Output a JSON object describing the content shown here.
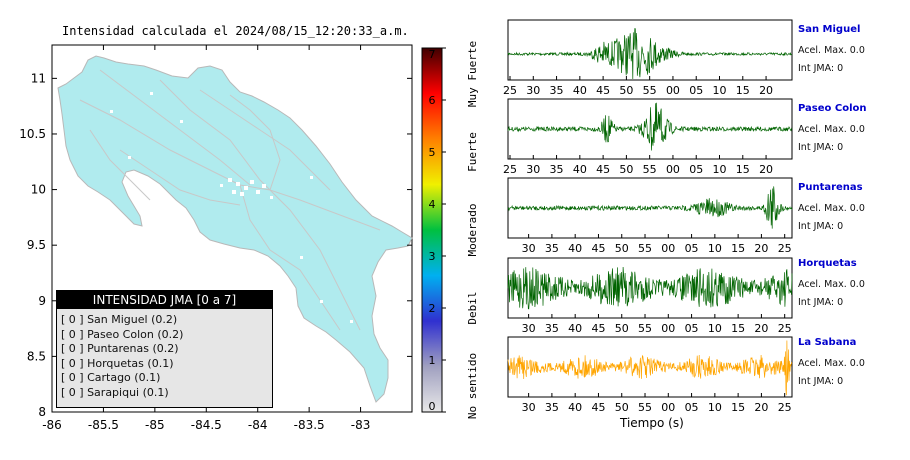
{
  "chart_data": [
    {
      "type": "map",
      "title": "Intensidad calculada el 2024/08/15_12:20:33_a.m.",
      "x_ticks": [
        "-86",
        "-85.5",
        "-85",
        "-84.5",
        "-84",
        "-83.5",
        "-83"
      ],
      "y_ticks": [
        "11",
        "10.5",
        "10",
        "9.5",
        "9",
        "8.5",
        "8"
      ],
      "xlim": [
        -86,
        -82.5
      ],
      "ylim": [
        8,
        11.3
      ],
      "legend": {
        "header": "INTENSIDAD JMA [0 a 7]",
        "entries": [
          "[ 0 ] San Miguel (0.2)",
          "[ 0 ] Paseo Colon (0.2)",
          "[ 0 ] Puntarenas (0.2)",
          "[ 0 ] Horquetas (0.1)",
          "[ 0 ] Cartago (0.1)",
          "[ 0 ] Sarapiqui (0.1)"
        ]
      }
    },
    {
      "type": "colorbar",
      "range": [
        0,
        7
      ],
      "ticks": [
        "0",
        "1",
        "2",
        "3",
        "4",
        "5",
        "6",
        "7"
      ],
      "category_labels": [
        "No sentido",
        "Debil",
        "Moderado",
        "Fuerte",
        "Muy Fuerte"
      ],
      "colors": [
        "#e8e8e8",
        "#a0a0c0",
        "#3030d0",
        "#00b0f0",
        "#00c040",
        "#f0f000",
        "#ff8000",
        "#ff0000",
        "#400000"
      ]
    },
    {
      "type": "waveforms",
      "xlabel": "Tiempo (s)",
      "stations": [
        {
          "name": "San Miguel",
          "max_label": "Acel. Max. 0.0",
          "jma_label": "Int JMA: 0",
          "color": "#006400",
          "ticks": [
            "25",
            "30",
            "35",
            "40",
            "45",
            "50",
            "55",
            "00",
            "05",
            "10",
            "15",
            "20"
          ]
        },
        {
          "name": "Paseo Colon",
          "max_label": "Acel. Max. 0.0",
          "jma_label": "Int JMA: 0",
          "color": "#006400",
          "ticks": [
            "25",
            "30",
            "35",
            "40",
            "45",
            "50",
            "55",
            "00",
            "05",
            "10",
            "15",
            "20"
          ]
        },
        {
          "name": "Puntarenas",
          "max_label": "Acel. Max. 0.0",
          "jma_label": "Int JMA: 0",
          "color": "#006400",
          "ticks": [
            "30",
            "35",
            "40",
            "45",
            "50",
            "55",
            "00",
            "05",
            "10",
            "15",
            "20",
            "25"
          ]
        },
        {
          "name": "Horquetas",
          "max_label": "Acel. Max. 0.0",
          "jma_label": "Int JMA: 0",
          "color": "#006400",
          "ticks": [
            "30",
            "35",
            "40",
            "45",
            "50",
            "55",
            "00",
            "05",
            "10",
            "15",
            "20",
            "25"
          ]
        },
        {
          "name": "La Sabana",
          "max_label": "Acel. Max. 0.0",
          "jma_label": "Int JMA: 0",
          "color": "#ffa500",
          "ticks": [
            "30",
            "35",
            "40",
            "45",
            "50",
            "55",
            "00",
            "05",
            "10",
            "15",
            "20",
            "25"
          ]
        }
      ]
    }
  ]
}
